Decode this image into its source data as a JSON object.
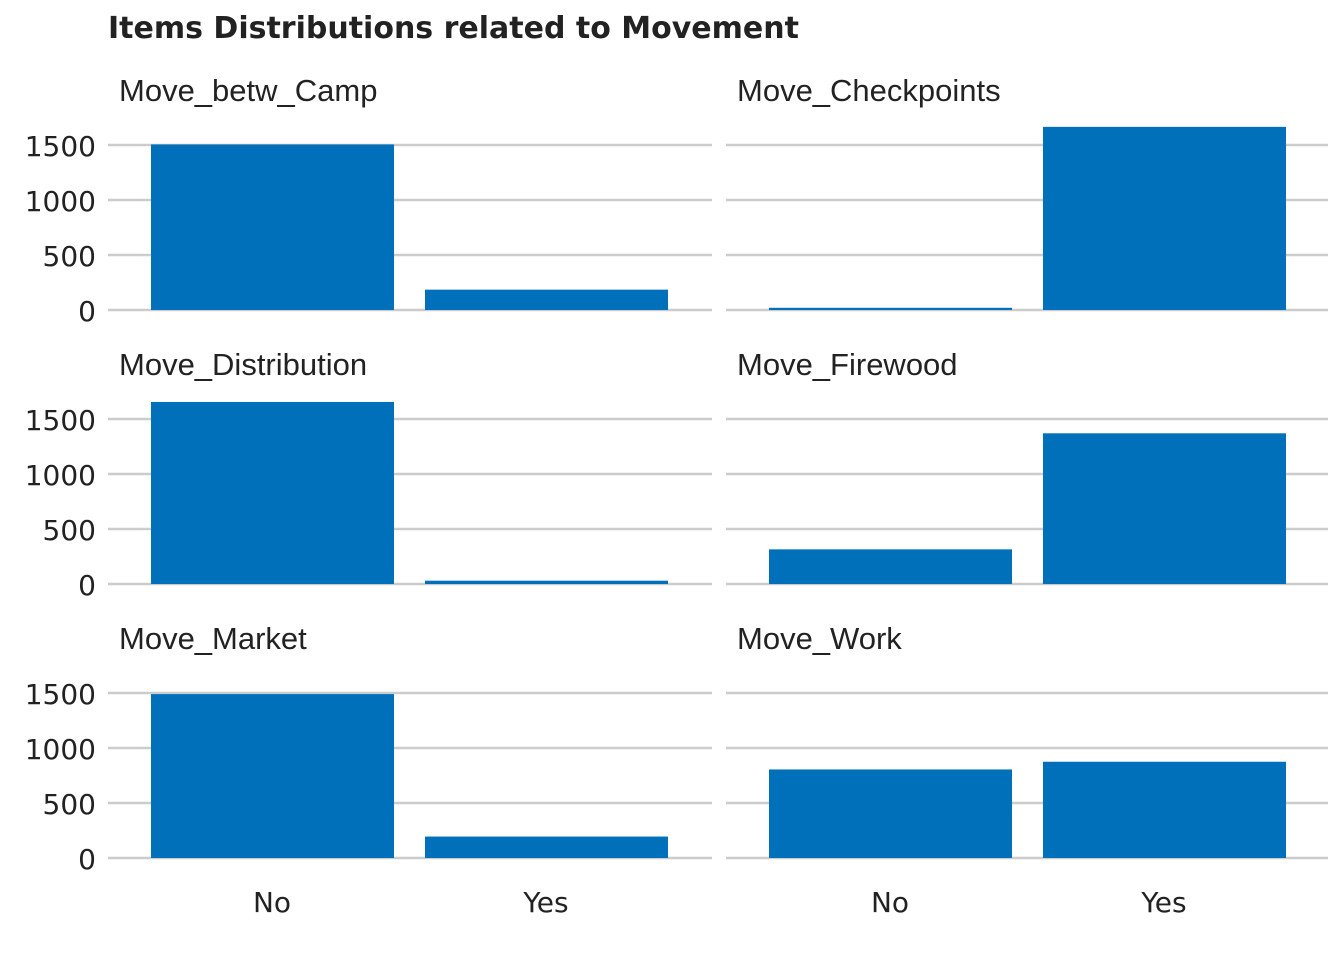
{
  "chart_data": {
    "type": "bar",
    "title": "Items Distributions related to Movement",
    "categories": [
      "No",
      "Yes"
    ],
    "ylim": [
      0,
      1700
    ],
    "yticks": [
      0,
      500,
      1000,
      1500
    ],
    "grid": true,
    "bar_color": "#0070BA",
    "grid_color": "#CCCCCC",
    "panels": [
      {
        "title": "Move_betw_Camp",
        "values": [
          1505,
          185
        ]
      },
      {
        "title": "Move_Checkpoints",
        "values": [
          20,
          1665
        ]
      },
      {
        "title": "Move_Distribution",
        "values": [
          1655,
          30
        ]
      },
      {
        "title": "Move_Firewood",
        "values": [
          315,
          1370
        ]
      },
      {
        "title": "Move_Market",
        "values": [
          1490,
          195
        ]
      },
      {
        "title": "Move_Work",
        "values": [
          805,
          875
        ]
      }
    ]
  }
}
